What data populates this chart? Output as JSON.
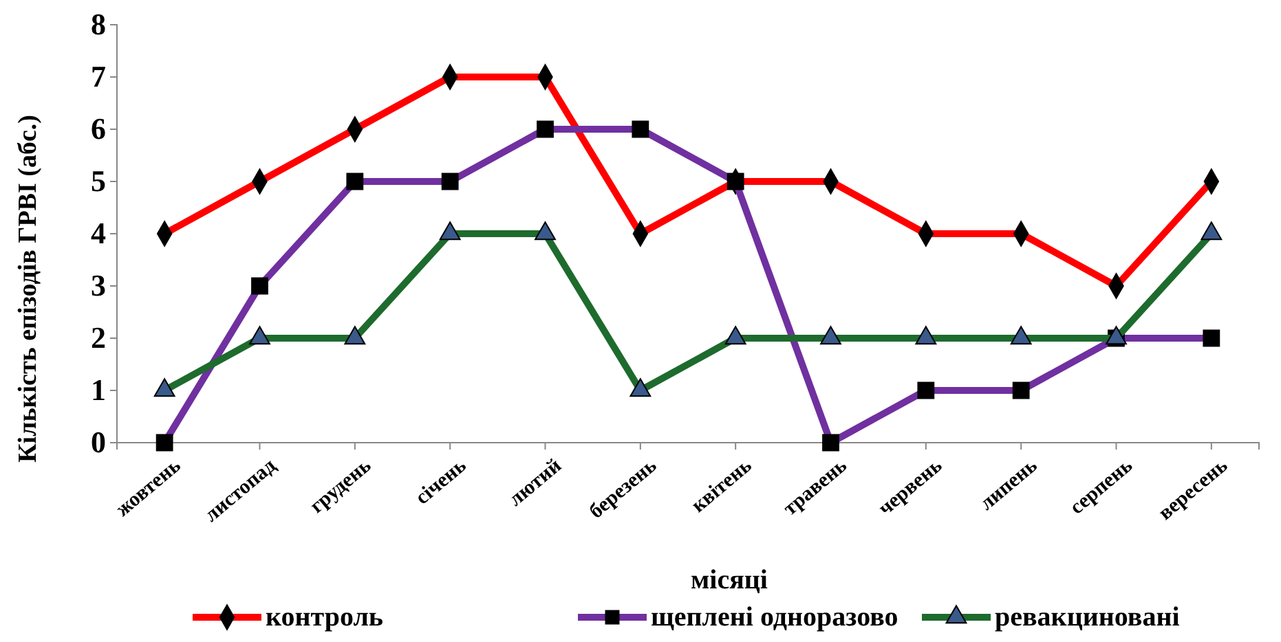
{
  "chart_data": {
    "type": "line",
    "xlabel": "місяці",
    "ylabel": "Кількість епізодів ГРВІ (абс.)",
    "categories": [
      "жовтень",
      "листопад",
      "грудень",
      "січень",
      "лютий",
      "березень",
      "квітень",
      "травень",
      "червень",
      "липень",
      "серпень",
      "вересень"
    ],
    "ylim": [
      0,
      8
    ],
    "yticks": [
      0,
      1,
      2,
      3,
      4,
      5,
      6,
      7,
      8
    ],
    "grid": false,
    "legend": "bottom",
    "series": [
      {
        "name": "контроль",
        "color": "#ff0000",
        "marker": "diamond",
        "values": [
          4,
          5,
          6,
          7,
          7,
          4,
          5,
          5,
          4,
          4,
          3,
          5
        ]
      },
      {
        "name": "щеплені одноразово",
        "color": "#7030a0",
        "marker": "square",
        "values": [
          0,
          3,
          5,
          5,
          6,
          6,
          5,
          0,
          1,
          1,
          2,
          2
        ]
      },
      {
        "name": "ревакциновані",
        "color": "#1e6b2e",
        "marker": "triangle",
        "values": [
          1,
          2,
          2,
          4,
          4,
          1,
          2,
          2,
          2,
          2,
          2,
          4
        ]
      }
    ]
  }
}
